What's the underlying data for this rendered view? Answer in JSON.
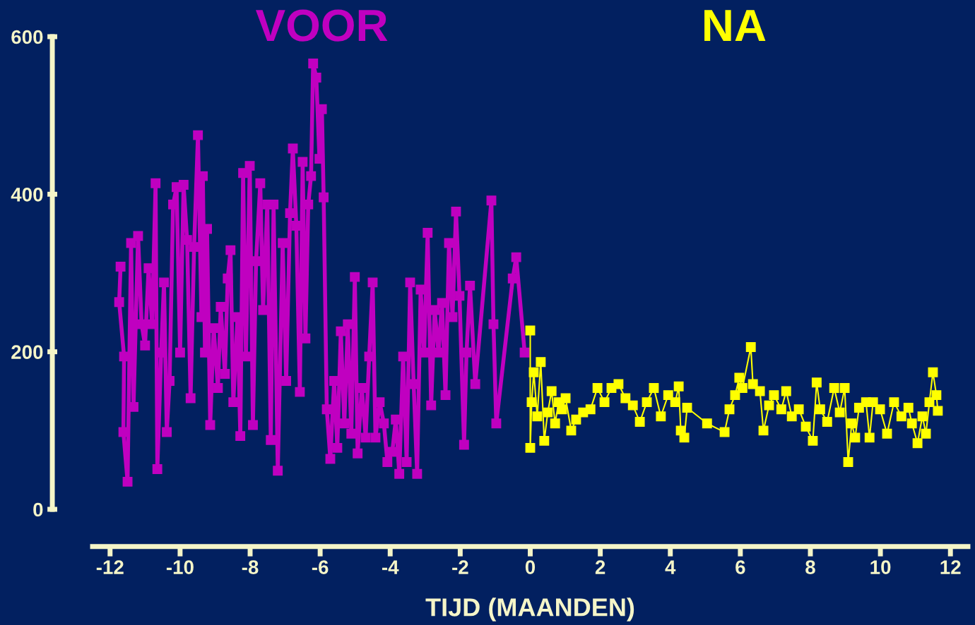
{
  "chart_data": {
    "type": "line",
    "xlabel": "TIJD (MAANDEN)",
    "xlim": [
      -12.5,
      12.5
    ],
    "xticks": [
      -12,
      -10,
      -8,
      -6,
      -4,
      -2,
      0,
      2,
      4,
      6,
      8,
      10,
      12
    ],
    "ylim": [
      0,
      600
    ],
    "yticks": [
      0,
      200,
      400,
      600
    ],
    "grid": false,
    "legend": false,
    "marker": "square",
    "line_style": "solid",
    "series": [
      {
        "name": "VOOR",
        "color": "#c000c0",
        "x": [
          -11.7,
          -11.74,
          -11.6,
          -11.62,
          -11.5,
          -11.4,
          -11.33,
          -11.2,
          -11.1,
          -11.0,
          -10.9,
          -10.8,
          -10.7,
          -10.65,
          -10.54,
          -10.46,
          -10.38,
          -10.3,
          -10.2,
          -10.1,
          -10.0,
          -9.9,
          -9.8,
          -9.7,
          -9.6,
          -9.49,
          -9.39,
          -9.35,
          -9.29,
          -9.23,
          -9.14,
          -9.04,
          -8.92,
          -8.84,
          -8.72,
          -8.64,
          -8.56,
          -8.48,
          -8.36,
          -8.28,
          -8.2,
          -8.12,
          -8.01,
          -7.92,
          -7.83,
          -7.71,
          -7.63,
          -7.51,
          -7.41,
          -7.33,
          -7.21,
          -7.07,
          -6.97,
          -6.86,
          -6.78,
          -6.68,
          -6.58,
          -6.5,
          -6.42,
          -6.34,
          -6.26,
          -6.2,
          -6.11,
          -6.02,
          -5.95,
          -5.9,
          -5.81,
          -5.71,
          -5.6,
          -5.51,
          -5.41,
          -5.31,
          -5.21,
          -5.11,
          -5.01,
          -4.93,
          -4.81,
          -4.7,
          -4.6,
          -4.5,
          -4.42,
          -4.3,
          -4.18,
          -4.08,
          -3.94,
          -3.84,
          -3.74,
          -3.63,
          -3.53,
          -3.43,
          -3.33,
          -3.23,
          -3.13,
          -3.03,
          -2.93,
          -2.83,
          -2.73,
          -2.62,
          -2.52,
          -2.42,
          -2.32,
          -2.22,
          -2.12,
          -2.02,
          -1.89,
          -1.82,
          -1.72,
          -1.57,
          -1.11,
          -1.05,
          -0.97,
          -0.5,
          -0.4,
          -0.16
        ],
        "values": [
          308,
          263,
          194,
          98,
          35,
          338,
          130,
          347,
          235,
          208,
          306,
          235,
          414,
          51,
          199,
          288,
          98,
          163,
          387,
          409,
          199,
          412,
          342,
          141,
          333,
          475,
          244,
          423,
          199,
          356,
          107,
          230,
          154,
          257,
          172,
          293,
          329,
          136,
          244,
          93,
          427,
          194,
          436,
          107,
          315,
          414,
          253,
          387,
          88,
          387,
          49,
          338,
          163,
          376,
          458,
          360,
          149,
          441,
          217,
          387,
          423,
          566,
          548,
          445,
          508,
          396,
          127,
          64,
          163,
          78,
          226,
          109,
          235,
          96,
          295,
          71,
          154,
          91,
          194,
          288,
          91,
          136,
          109,
          60,
          73,
          114,
          45,
          194,
          60,
          288,
          159,
          45,
          279,
          199,
          351,
          132,
          253,
          199,
          262,
          145,
          338,
          244,
          378,
          271,
          82,
          199,
          284,
          159,
          392,
          235,
          109,
          293,
          320,
          199
        ]
      },
      {
        "name": "NA",
        "color": "#ffff00",
        "x": [
          0.0,
          0.0,
          0.04,
          0.1,
          0.2,
          0.3,
          0.4,
          0.5,
          0.61,
          0.71,
          0.81,
          0.91,
          1.01,
          1.17,
          1.31,
          1.51,
          1.72,
          1.92,
          2.12,
          2.32,
          2.52,
          2.72,
          2.93,
          3.13,
          3.33,
          3.53,
          3.73,
          3.94,
          4.14,
          4.24,
          4.3,
          4.4,
          4.48,
          5.05,
          5.55,
          5.69,
          5.85,
          5.97,
          6.06,
          6.3,
          6.36,
          6.56,
          6.66,
          6.82,
          6.96,
          7.17,
          7.31,
          7.47,
          7.67,
          7.87,
          8.07,
          8.18,
          8.28,
          8.48,
          8.68,
          8.84,
          8.98,
          9.08,
          9.18,
          9.28,
          9.39,
          9.59,
          9.69,
          9.79,
          9.99,
          10.19,
          10.39,
          10.6,
          10.8,
          10.9,
          11.06,
          11.2,
          11.3,
          11.4,
          11.5,
          11.6,
          11.64
        ],
        "values": [
          227,
          78,
          136,
          174,
          118,
          187,
          87,
          123,
          150,
          109,
          136,
          127,
          141,
          100,
          114,
          123,
          127,
          154,
          136,
          154,
          159,
          141,
          132,
          111,
          136,
          154,
          118,
          145,
          136,
          156,
          100,
          91,
          129,
          109,
          98,
          127,
          145,
          167,
          154,
          206,
          159,
          150,
          100,
          132,
          145,
          127,
          150,
          118,
          127,
          105,
          87,
          161,
          127,
          111,
          154,
          123,
          154,
          60,
          109,
          91,
          129,
          136,
          91,
          136,
          127,
          96,
          136,
          118,
          129,
          109,
          84,
          118,
          96,
          136,
          174,
          145,
          125
        ]
      }
    ]
  }
}
